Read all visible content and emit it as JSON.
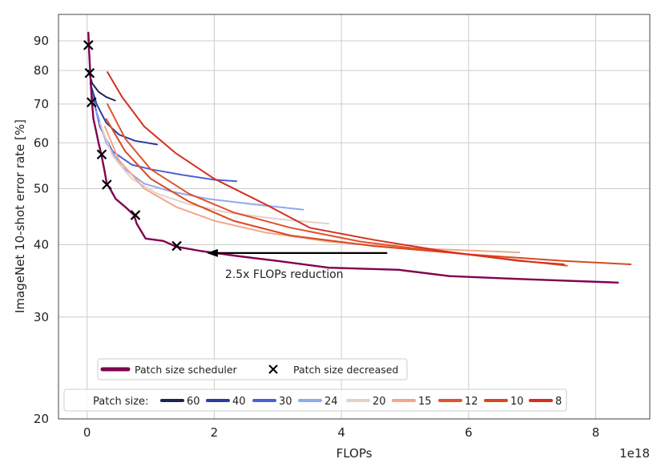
{
  "chart_data": {
    "type": "line",
    "xlabel": "FLOPs",
    "ylabel": "ImageNet 10-shot error rate [%]",
    "x_offset_label": "1e18",
    "xlim": [
      -0.45,
      8.85
    ],
    "ylim": [
      20,
      100
    ],
    "y_scale": "log",
    "x_ticks": [
      0,
      2,
      4,
      6,
      8
    ],
    "y_ticks": [
      20,
      30,
      40,
      50,
      60,
      70,
      80,
      90
    ],
    "grid": true,
    "annotation": {
      "text": "2.5x FLOPs reduction",
      "arrow_from": [
        4.72,
        38.7
      ],
      "arrow_to": [
        1.88,
        38.7
      ]
    },
    "legend_top": {
      "placement": "lower-left",
      "entries": [
        {
          "label": "Patch size scheduler",
          "kind": "line",
          "color": "#800050"
        },
        {
          "label": "Patch size decreased",
          "kind": "marker",
          "color": "#000000"
        }
      ]
    },
    "legend_bottom": {
      "placement": "bottom-left",
      "title": "Patch size:",
      "entries": [
        {
          "label": "60",
          "color": "#1c2452"
        },
        {
          "label": "40",
          "color": "#2b3c9e"
        },
        {
          "label": "30",
          "color": "#4a62d0"
        },
        {
          "label": "24",
          "color": "#8fa9ee"
        },
        {
          "label": "20",
          "color": "#e6d1c6"
        },
        {
          "label": "15",
          "color": "#f2a68a"
        },
        {
          "label": "12",
          "color": "#e2522c"
        },
        {
          "label": "10",
          "color": "#d9491f"
        },
        {
          "label": "8",
          "color": "#d52f1e"
        }
      ]
    },
    "series": [
      {
        "name": "60",
        "color": "#1c2452",
        "x": [
          0.02,
          0.08,
          0.18,
          0.3,
          0.44
        ],
        "y": [
          80.0,
          76.0,
          73.5,
          72.0,
          71.0
        ]
      },
      {
        "name": "40",
        "color": "#2b3c9e",
        "x": [
          0.05,
          0.15,
          0.3,
          0.5,
          0.75,
          1.1
        ],
        "y": [
          76.0,
          70.0,
          65.0,
          62.0,
          60.5,
          59.6
        ]
      },
      {
        "name": "30",
        "color": "#4a62d0",
        "x": [
          0.08,
          0.2,
          0.4,
          0.7,
          1.0,
          1.5,
          2.0,
          2.35
        ],
        "y": [
          73.0,
          64.0,
          58.0,
          55.0,
          54.0,
          52.8,
          51.8,
          51.5
        ]
      },
      {
        "name": "24",
        "color": "#8fa9ee",
        "x": [
          0.15,
          0.3,
          0.55,
          0.9,
          1.3,
          1.9,
          2.6,
          3.4
        ],
        "y": [
          68.0,
          60.0,
          54.5,
          51.0,
          49.5,
          48.0,
          47.0,
          46.0
        ]
      },
      {
        "name": "20",
        "color": "#e6d1c6",
        "x": [
          0.2,
          0.4,
          0.7,
          1.1,
          1.6,
          2.2,
          3.0,
          3.8
        ],
        "y": [
          65.0,
          57.0,
          52.0,
          49.0,
          47.0,
          45.5,
          44.3,
          43.5
        ]
      },
      {
        "name": "15",
        "color": "#f2a68a",
        "x": [
          0.28,
          0.5,
          0.9,
          1.4,
          2.0,
          2.8,
          3.8,
          5.0,
          6.8
        ],
        "y": [
          64.0,
          56.0,
          50.0,
          46.5,
          44.0,
          42.0,
          40.5,
          39.5,
          38.8
        ]
      },
      {
        "name": "12",
        "color": "#e2522c",
        "x": [
          0.32,
          0.6,
          1.0,
          1.6,
          2.3,
          3.2,
          4.3,
          5.5,
          6.6,
          7.55
        ],
        "y": [
          70.0,
          61.0,
          54.0,
          49.0,
          45.5,
          42.8,
          40.5,
          39.0,
          37.8,
          36.8
        ]
      },
      {
        "name": "10",
        "color": "#d9491f",
        "x": [
          0.3,
          0.6,
          1.0,
          1.6,
          2.3,
          3.2,
          4.5,
          6.0,
          7.5,
          8.55
        ],
        "y": [
          66.0,
          58.0,
          52.0,
          47.5,
          44.0,
          41.5,
          39.8,
          38.5,
          37.5,
          37.0
        ]
      },
      {
        "name": "8",
        "color": "#d52f1e",
        "x": [
          0.32,
          0.55,
          0.9,
          1.4,
          2.0,
          2.8,
          3.5,
          4.5,
          5.6,
          6.8,
          7.5
        ],
        "y": [
          79.5,
          72.0,
          64.0,
          57.5,
          52.0,
          47.0,
          42.8,
          40.8,
          39.0,
          37.5,
          37.0
        ]
      },
      {
        "name": "Patch size scheduler",
        "color": "#800050",
        "x": [
          0.02,
          0.03,
          0.05,
          0.07,
          0.1,
          0.14,
          0.18,
          0.22,
          0.27,
          0.31,
          0.36,
          0.45,
          0.6,
          0.74,
          0.78,
          0.92,
          1.2,
          1.4,
          1.8,
          2.4,
          3.0,
          3.8,
          4.9,
          5.7,
          6.8,
          8.35
        ],
        "y": [
          93.0,
          87.0,
          79.0,
          72.0,
          66.0,
          63.0,
          60.0,
          57.5,
          54.0,
          51.0,
          50.0,
          48.0,
          46.5,
          45.0,
          43.5,
          41.0,
          40.6,
          39.7,
          39.0,
          38.2,
          37.5,
          36.5,
          36.2,
          35.3,
          34.9,
          34.4
        ]
      }
    ],
    "markers": {
      "name": "Patch size decreased",
      "x": [
        0.02,
        0.04,
        0.07,
        0.23,
        0.31,
        0.76,
        1.41
      ],
      "y": [
        88.5,
        79.2,
        70.5,
        57.3,
        50.8,
        45.0,
        39.8
      ]
    }
  }
}
